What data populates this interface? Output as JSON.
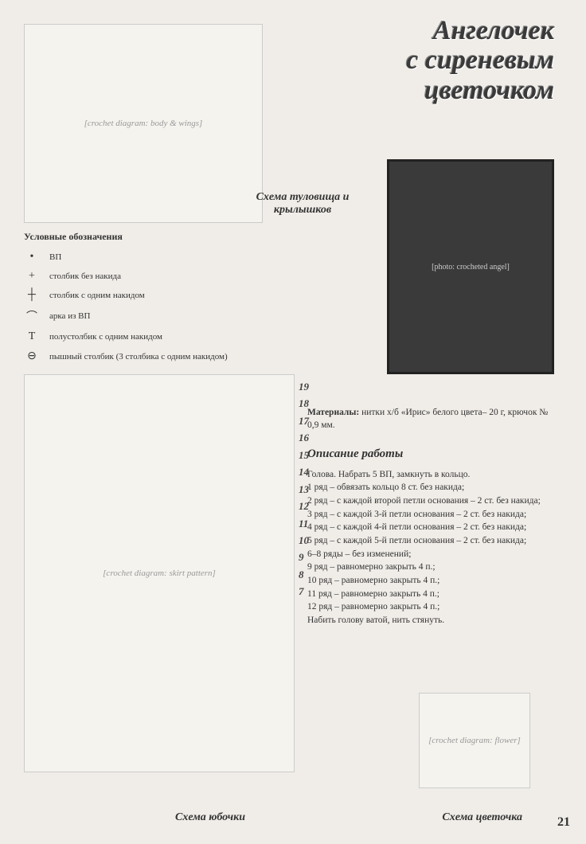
{
  "title": {
    "line1": "Ангелочек",
    "line2": "с сиреневым",
    "line3": "цветочком"
  },
  "labels": {
    "body_wings": "Схема туловища и крылышков",
    "skirt": "Схема юбочки",
    "flower": "Схема цветочка"
  },
  "legend": {
    "title": "Условные обозначения",
    "items": [
      {
        "symbol": "•",
        "text": "ВП"
      },
      {
        "symbol": "+",
        "text": "столбик без накида"
      },
      {
        "symbol": "┼",
        "text": "столбик с одним накидом"
      },
      {
        "symbol": "⌒",
        "text": "арка из ВП"
      },
      {
        "symbol": "T",
        "text": "полустолбик с одним накидом"
      },
      {
        "symbol": "⊖",
        "text": "пышный столбик (3 столбика с одним накидом)"
      }
    ]
  },
  "materials": {
    "label": "Материалы:",
    "text": "нитки х/б «Ирис» белого цвета– 20 г, крючок № 0,9 мм."
  },
  "instructions": {
    "title": "Описание работы",
    "lines": [
      "Голова. Набрать 5 ВП, замкнуть в кольцо.",
      "1 ряд – обвязать кольцо 8 ст. без накида;",
      "2 ряд – с каждой второй петли основания – 2 ст. без накида;",
      "3 ряд – с каждой 3-й петли основания – 2 ст. без накида;",
      "4 ряд – с каждой 4-й петли основания – 2 ст. без накида;",
      "5 ряд – с каждой 5-й петли основания – 2 ст. без накида;",
      "6–8 ряды – без изменений;",
      "9 ряд – равномерно закрыть 4 п.;",
      "10 ряд – равномерно закрыть 4 п.;",
      "11 ряд – равномерно закрыть 4 п.;",
      "12 ряд – равномерно закрыть 4 п.;",
      "Набить голову ватой, нить стянуть."
    ]
  },
  "row_numbers": [
    "19",
    "18",
    "17",
    "16",
    "15",
    "14",
    "13",
    "12",
    "11",
    "10",
    "9",
    "8",
    "7"
  ],
  "page_number": "21",
  "diagram_placeholders": {
    "top": "[crochet diagram: body & wings]",
    "skirt": "[crochet diagram: skirt pattern]",
    "flower": "[crochet diagram: flower]",
    "photo": "[photo: crocheted angel]"
  }
}
